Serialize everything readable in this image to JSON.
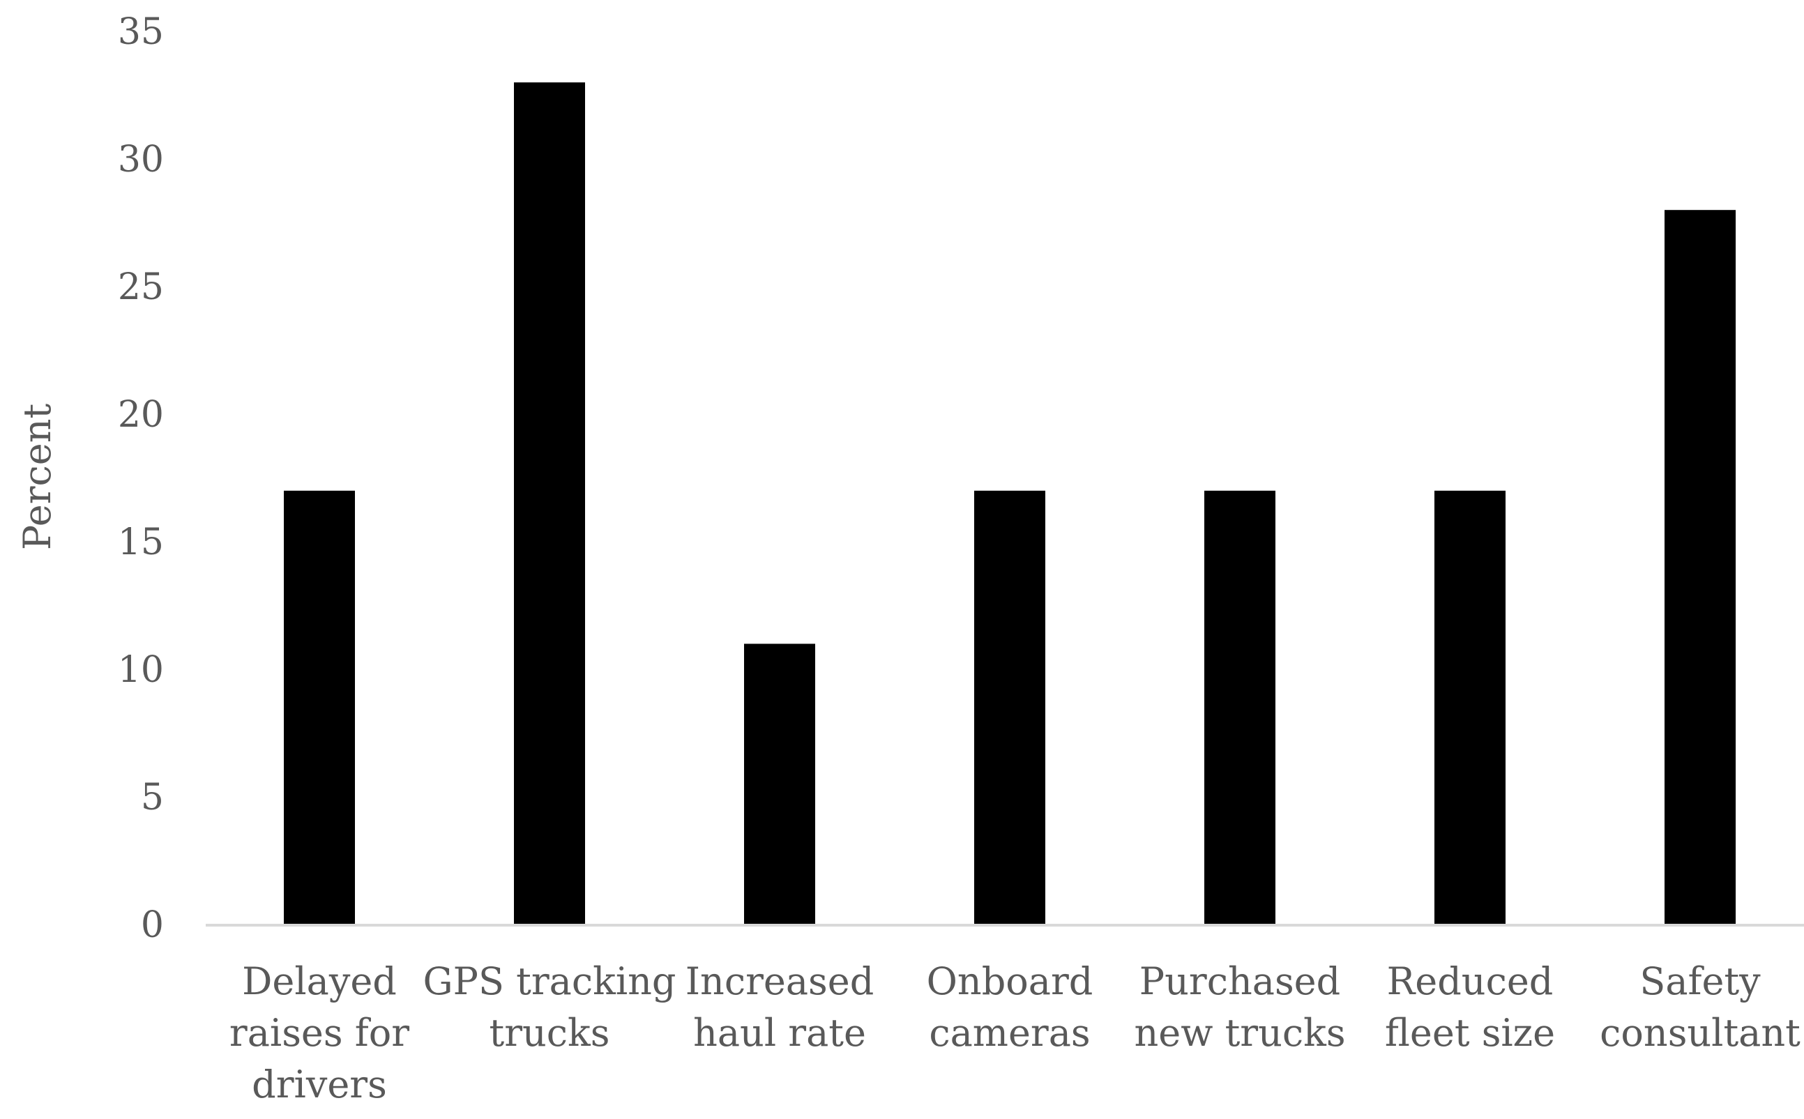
{
  "chart_data": {
    "type": "bar",
    "title": "",
    "xlabel": "",
    "ylabel": "Percent",
    "ylim": [
      0,
      35
    ],
    "yticks": [
      0,
      5,
      10,
      15,
      20,
      25,
      30,
      35
    ],
    "grid": false,
    "legend": "none",
    "bar_color": "#000000",
    "axis_color": "#d9d9d9",
    "text_color": "#595959",
    "categories": [
      [
        "Delayed",
        "raises for",
        "drivers"
      ],
      [
        "GPS tracking",
        "trucks"
      ],
      [
        "Increased",
        "haul rate"
      ],
      [
        "Onboard",
        "cameras"
      ],
      [
        "Purchased",
        "new trucks"
      ],
      [
        "Reduced",
        "fleet size"
      ],
      [
        "Safety",
        "consultant"
      ]
    ],
    "values": [
      17,
      33,
      11,
      17,
      17,
      17,
      28
    ]
  }
}
